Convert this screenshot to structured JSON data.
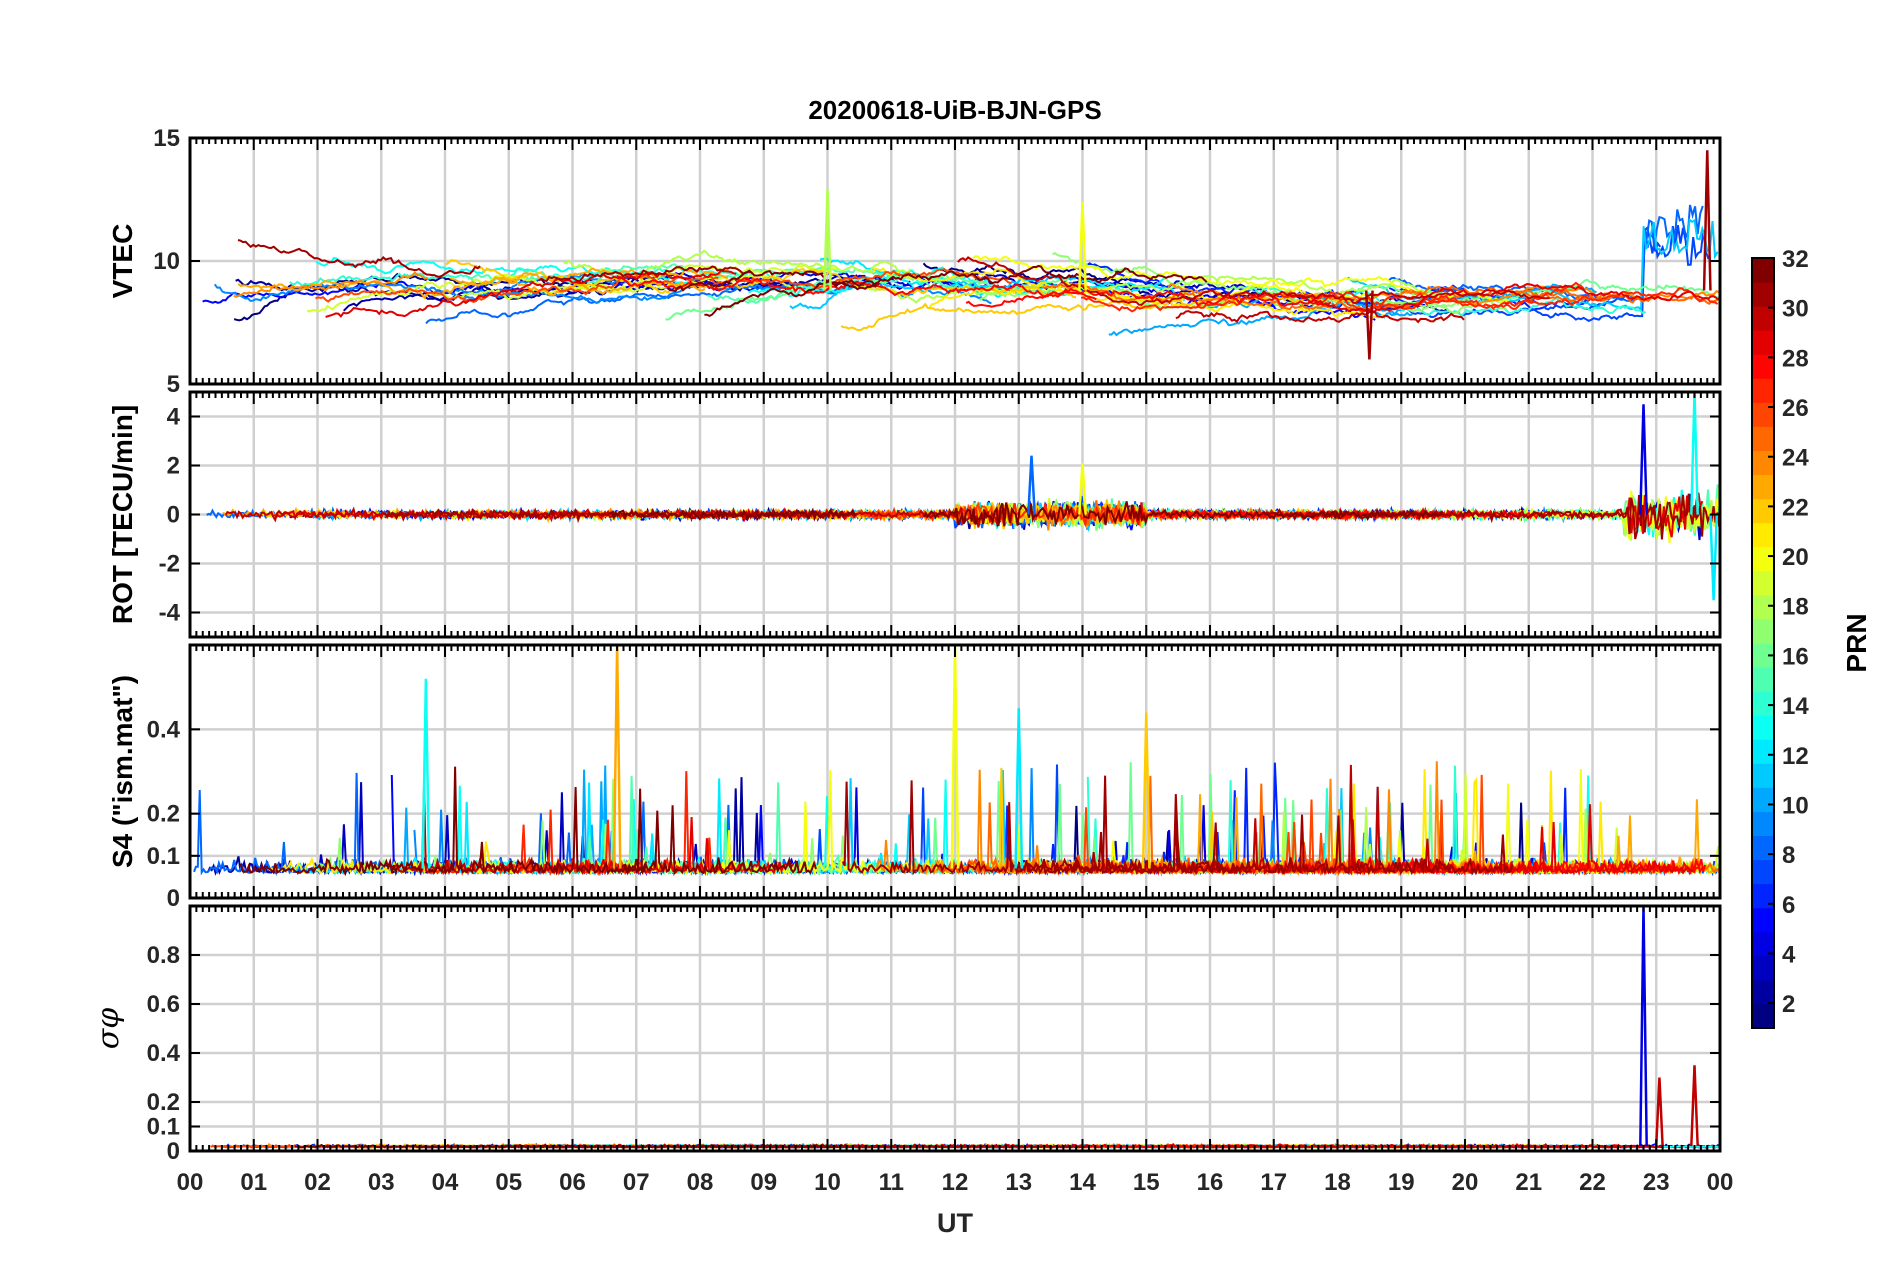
{
  "chart_data": {
    "type": "line",
    "title": "20200618-UiB-BJN-GPS",
    "xlabel": "UT",
    "x_range_hours": [
      0,
      24
    ],
    "x_tick_labels": [
      "00",
      "01",
      "02",
      "03",
      "04",
      "05",
      "06",
      "07",
      "08",
      "09",
      "10",
      "11",
      "12",
      "13",
      "14",
      "15",
      "16",
      "17",
      "18",
      "19",
      "20",
      "21",
      "22",
      "23",
      "00"
    ],
    "colorbar": {
      "label": "PRN",
      "range": [
        1,
        32
      ],
      "ticks": [
        2,
        4,
        6,
        8,
        10,
        12,
        14,
        16,
        18,
        20,
        22,
        24,
        26,
        28,
        30,
        32
      ],
      "colormap": "jet"
    },
    "panels": [
      {
        "id": "vtec",
        "ylabel": "VTEC",
        "ylim": [
          5,
          15
        ],
        "yticks": [
          5,
          10,
          15
        ],
        "baseline": 8.8,
        "spread": 1.6,
        "series_summary": "VTEC mostly 7-11 TECU; peak about 13 near 10 UT (PRN 18); PRN 31 reaches about 14.5 at 23.8 UT; about 6 TECU near 18.5 UT"
      },
      {
        "id": "rot",
        "ylabel": "ROT [TECU/min]",
        "ylim": [
          -5,
          5
        ],
        "yticks": [
          -4,
          -2,
          0,
          2,
          4
        ],
        "series_summary": "ROT near 0 with enhanced fluctuations 12-15 UT (about ±2) and 22.5-24 UT (about -3 to 5)"
      },
      {
        "id": "s4",
        "ylabel": "S4 (\"ism.mat\")",
        "ylim": [
          0,
          0.6
        ],
        "yticks": [
          0,
          0.1,
          0.2,
          0.4
        ],
        "series_summary": "S4 background 0.05-0.1 with spikes up to 0.6 near 6.7 UT and 12 UT"
      },
      {
        "id": "sigma_phi",
        "ylabel": "σφ",
        "ylim": [
          0,
          1
        ],
        "yticks": [
          0,
          0.1,
          0.2,
          0.4,
          0.6,
          0.8
        ],
        "series_summary": "Sigma-phi near 0.02 all day; spike to about 1.0 at 22.8 UT (PRN 4); spikes about 0.3 near 23.0 and 23.6 UT"
      }
    ]
  }
}
